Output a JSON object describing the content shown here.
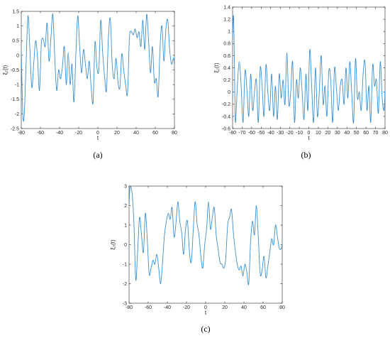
{
  "figure": {
    "line_color": "#3c8fd0",
    "axis_color": "#262626"
  },
  "chart_data": [
    {
      "type": "line",
      "caption": "(a)",
      "xlabel": "t",
      "ylabel": "ξ₁(t)",
      "xlim": [
        -80,
        80
      ],
      "ylim": [
        -2.5,
        1.5
      ],
      "xticks": [
        -80,
        -60,
        -40,
        -20,
        0,
        20,
        40,
        60,
        80
      ],
      "yticks": [
        -2.5,
        -2,
        -1.5,
        -1,
        -0.5,
        0,
        0.5,
        1,
        1.5
      ],
      "xticklabels": [
        "-80",
        "-60",
        "-40",
        "-20",
        "0",
        "20",
        "40",
        "60",
        "80"
      ],
      "yticklabels": [
        "-2.5",
        "-2",
        "-1.5",
        "-1",
        "-0.5",
        "0",
        "0.5",
        "1",
        "1.5"
      ],
      "grid": false,
      "series": [
        {
          "x": [
            -80,
            -78.5,
            -77,
            -75,
            -73,
            -71,
            -69,
            -67,
            -65,
            -63,
            -61,
            -59,
            -57,
            -55,
            -53,
            -51,
            -49,
            -47,
            -45,
            -43,
            -41,
            -39,
            -37,
            -35,
            -33,
            -31,
            -29,
            -27,
            -25,
            -23,
            -21,
            -19,
            -17,
            -15,
            -13,
            -11,
            -9,
            -7,
            -5,
            -3,
            -1,
            1,
            3,
            5,
            7,
            9,
            11,
            13,
            15,
            17,
            19,
            21,
            23,
            25,
            27,
            29,
            31,
            33,
            35,
            37,
            39,
            41,
            43,
            45,
            47,
            49,
            51,
            53,
            55,
            57,
            59,
            61,
            63,
            65,
            67,
            69,
            71,
            73,
            75,
            77,
            79,
            80
          ],
          "values": [
            0.2,
            -1.9,
            -2.1,
            -0.3,
            1.35,
            0.2,
            -1.1,
            -0.3,
            0.5,
            -0.1,
            -1.2,
            0.4,
            0.55,
            0.3,
            1.1,
            -0.2,
            0.6,
            1.4,
            -0.1,
            -1.2,
            -0.5,
            -0.8,
            -0.4,
            0.3,
            -1.0,
            0.1,
            -1.0,
            -0.3,
            -1.6,
            0.0,
            1.35,
            0.3,
            -0.6,
            0.2,
            -0.3,
            -0.8,
            -0.2,
            -1.1,
            -1.6,
            0.45,
            -0.4,
            -0.5,
            1.2,
            0.1,
            -0.7,
            -1.2,
            0.6,
            1.25,
            -0.3,
            -0.8,
            -0.1,
            -0.9,
            -1.1,
            0.05,
            -0.5,
            -1.0,
            -1.3,
            0.6,
            0.8,
            0.7,
            0.9,
            0.6,
            0.8,
            0.3,
            1.2,
            0.2,
            1.4,
            0.5,
            -0.6,
            0.3,
            -0.9,
            -0.8,
            -1.4,
            0.3,
            1.0,
            -0.2,
            0.9,
            1.2,
            0.2,
            -0.3,
            -0.1,
            -0.3
          ]
        }
      ]
    },
    {
      "type": "line",
      "caption": "(b)",
      "xlabel": "t",
      "ylabel": "ξ₂(t)",
      "xlim": [
        -80,
        80
      ],
      "ylim": [
        -0.6,
        1.4
      ],
      "xticks": [
        -80,
        -70,
        -60,
        -50,
        -40,
        -30,
        -20,
        -10,
        0,
        10,
        20,
        30,
        40,
        50,
        60,
        70,
        80
      ],
      "yticks": [
        -0.6,
        -0.4,
        -0.2,
        0,
        0.2,
        0.4,
        0.6,
        0.8,
        1,
        1.2,
        1.4
      ],
      "xticklabels": [
        "-80",
        "-70",
        "-60",
        "-50",
        "-40",
        "-30",
        "-20",
        "-10",
        "0",
        "10",
        "20",
        "30",
        "40",
        "50",
        "60",
        "70",
        "80"
      ],
      "yticklabels": [
        "-0.6",
        "-0.4",
        "-0.2",
        "0",
        "0.2",
        "0.4",
        "0.6",
        "0.8",
        "1",
        "1.2",
        "1.4"
      ],
      "grid": false,
      "series": [
        {
          "x": [
            -80,
            -79,
            -78,
            -77,
            -75,
            -73,
            -71,
            -69,
            -67,
            -65,
            -63,
            -61,
            -59,
            -57,
            -55,
            -53,
            -51,
            -49,
            -47,
            -45,
            -43,
            -41,
            -39,
            -37,
            -35,
            -33,
            -31,
            -29,
            -27,
            -25,
            -23,
            -21,
            -19,
            -17,
            -15,
            -13,
            -11,
            -9,
            -7,
            -5,
            -3,
            -1,
            1,
            3,
            5,
            7,
            9,
            11,
            13,
            15,
            17,
            19,
            21,
            23,
            25,
            27,
            29,
            31,
            33,
            35,
            37,
            39,
            41,
            43,
            45,
            47,
            49,
            51,
            53,
            55,
            57,
            59,
            61,
            63,
            65,
            67,
            69,
            71,
            73,
            75,
            77,
            79,
            80
          ],
          "values": [
            0.9,
            1.25,
            0.4,
            -0.5,
            0.1,
            0.5,
            0.1,
            -0.5,
            0.35,
            0.05,
            -0.4,
            0.3,
            -0.3,
            0.0,
            0.2,
            -0.5,
            0.4,
            0.1,
            -0.4,
            0.45,
            0.0,
            -0.3,
            0.3,
            -0.4,
            0.1,
            -0.45,
            0.3,
            -0.1,
            0.2,
            -0.2,
            0.65,
            -0.2,
            0.0,
            0.5,
            -0.5,
            0.2,
            -0.1,
            0.4,
            0.0,
            -0.45,
            0.3,
            -0.3,
            0.7,
            0.1,
            -0.5,
            0.4,
            -0.4,
            0.0,
            0.6,
            -0.2,
            0.1,
            -0.4,
            0.35,
            0.2,
            -0.5,
            0.4,
            0.05,
            -0.3,
            0.1,
            0.2,
            -0.2,
            0.4,
            -0.1,
            0.5,
            0.0,
            -0.5,
            0.55,
            -0.1,
            0.0,
            -0.3,
            0.3,
            0.5,
            -0.3,
            0.1,
            -0.5,
            0.45,
            0.1,
            0.2,
            -0.35,
            0.5,
            -0.1,
            -0.3,
            0.05
          ]
        }
      ]
    },
    {
      "type": "line",
      "caption": "(c)",
      "xlabel": "t",
      "ylabel": "ξ₃(t)",
      "xlim": [
        -80,
        80
      ],
      "ylim": [
        -3,
        3
      ],
      "xticks": [
        -80,
        -60,
        -40,
        -20,
        0,
        20,
        40,
        60,
        80
      ],
      "yticks": [
        -3,
        -2,
        -1,
        0,
        1,
        2,
        3
      ],
      "xticklabels": [
        "-80",
        "-60",
        "-40",
        "-20",
        "0",
        "20",
        "40",
        "60",
        "80"
      ],
      "yticklabels": [
        "-3",
        "-2",
        "-1",
        "0",
        "1",
        "2",
        "3"
      ],
      "grid": false,
      "series": [
        {
          "x": [
            -80,
            -79,
            -77,
            -75,
            -73,
            -71,
            -69,
            -67,
            -65,
            -63,
            -61,
            -59,
            -57,
            -55,
            -53,
            -51,
            -49,
            -47,
            -45,
            -43,
            -41,
            -39,
            -37,
            -35,
            -33,
            -31,
            -29,
            -27,
            -25,
            -23,
            -21,
            -19,
            -17,
            -15,
            -13,
            -11,
            -9,
            -7,
            -5,
            -3,
            -1,
            1,
            3,
            5,
            7,
            9,
            11,
            13,
            15,
            17,
            19,
            21,
            23,
            25,
            27,
            29,
            31,
            33,
            35,
            37,
            39,
            41,
            43,
            45,
            47,
            49,
            51,
            53,
            55,
            57,
            59,
            61,
            63,
            65,
            67,
            69,
            71,
            73,
            75,
            77,
            79,
            80
          ],
          "values": [
            2.0,
            2.9,
            2.7,
            1.2,
            -1.8,
            -0.3,
            1.4,
            0.5,
            -0.4,
            1.6,
            0.3,
            -1.5,
            -1.2,
            -0.8,
            -1.0,
            -0.5,
            -1.2,
            -2.0,
            -0.9,
            0.5,
            1.2,
            1.6,
            1.3,
            1.9,
            0.4,
            1.1,
            2.2,
            1.2,
            0.6,
            -0.5,
            0.8,
            1.2,
            -0.3,
            -0.9,
            0.7,
            2.2,
            1.1,
            0.5,
            -0.6,
            -1.2,
            0.0,
            0.8,
            2.2,
            0.8,
            1.4,
            1.9,
            0.5,
            -0.2,
            -0.9,
            -1.0,
            -1.2,
            -0.7,
            1.0,
            1.4,
            1.8,
            0.6,
            -0.3,
            -1.0,
            -1.3,
            -1.1,
            -1.6,
            -1.0,
            -1.4,
            -2.0,
            0.2,
            1.2,
            0.5,
            2.0,
            0.4,
            -1.5,
            -1.3,
            -0.6,
            -1.7,
            -1.1,
            -0.4,
            0.3,
            0.0,
            1.0,
            0.4,
            -0.2,
            -0.2,
            0.0
          ]
        }
      ]
    }
  ]
}
